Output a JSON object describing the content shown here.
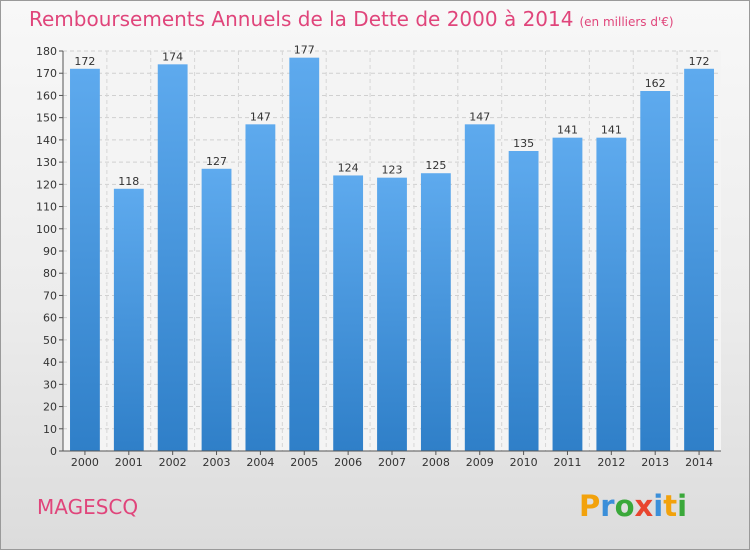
{
  "chart_data": {
    "type": "bar",
    "title": "Remboursements Annuels de la Dette de 2000 à 2014",
    "subtitle": "(en milliers d'€)",
    "categories": [
      "2000",
      "2001",
      "2002",
      "2003",
      "2004",
      "2005",
      "2006",
      "2007",
      "2008",
      "2009",
      "2010",
      "2011",
      "2012",
      "2013",
      "2014"
    ],
    "values": [
      172,
      118,
      174,
      127,
      147,
      177,
      124,
      123,
      125,
      147,
      135,
      141,
      141,
      162,
      172
    ],
    "xlabel": "",
    "ylabel": "",
    "ylim": [
      0,
      180
    ],
    "ytick_step": 10,
    "grid": true,
    "bar_color": "#4f9ee4"
  },
  "footer": {
    "city": "MAGESCQ",
    "logo": {
      "letters": [
        "P",
        "r",
        "o",
        "x",
        "i",
        "t",
        "i"
      ],
      "colors": [
        "#f2a20c",
        "#3b8fd9",
        "#3aa83a",
        "#e8452f",
        "#3b8fd9",
        "#f2a20c",
        "#3aa83a"
      ]
    }
  }
}
